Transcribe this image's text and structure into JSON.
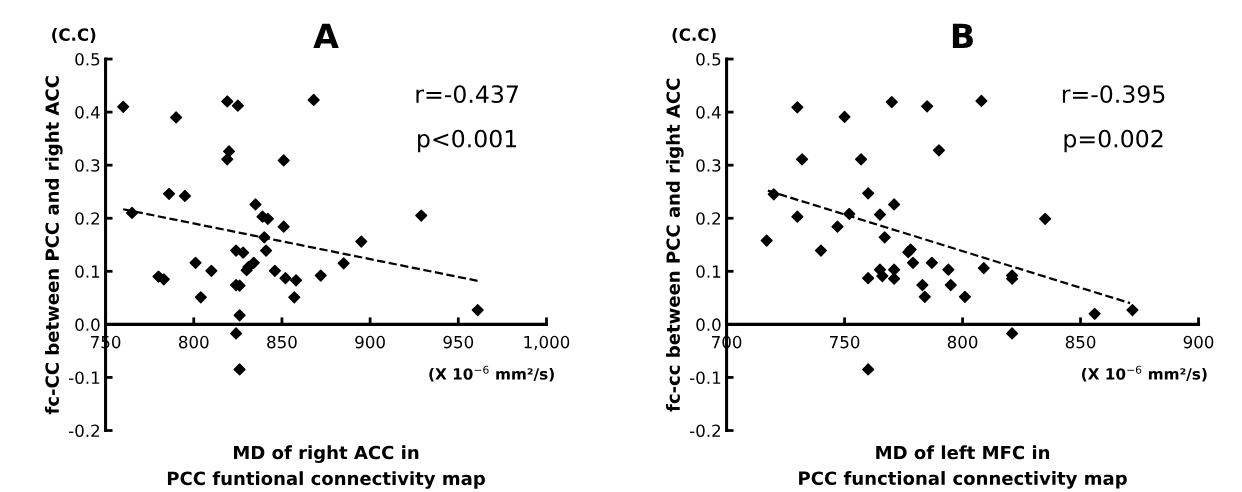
{
  "chart_data": [
    {
      "type": "scatter",
      "title": "A",
      "xlabel": "MD of right ACC in\nPCC funtional connectivity map",
      "ylabel": "fc-CC between PCC and right ACC",
      "annotations": [
        "(C.C)",
        "r=-0.437",
        "p<0.001",
        "(X 10$^{−6}$ mm²/s)"
      ],
      "xlim": [
        750,
        1000
      ],
      "xticks": [
        750,
        800,
        850,
        900,
        950,
        {
          "value": 1000,
          "label": "1,000"
        }
      ],
      "ylim": [
        -0.2,
        0.5
      ],
      "yticks": [
        {
          "value": -0.2,
          "label": "-0.2"
        },
        {
          "value": -0.1,
          "label": "-0.1"
        },
        {
          "value": 0,
          "label": "0.0"
        },
        0.1,
        0.2,
        0.3,
        0.4,
        0.5
      ],
      "grid": false,
      "legend": false,
      "series": [
        {
          "color": "#000000",
          "marker": "diamond",
          "x": [
            760,
            765,
            780,
            783,
            786,
            790,
            795,
            801,
            804,
            810,
            819,
            825,
            820,
            819,
            824,
            828,
            824,
            826,
            826,
            824,
            826,
            830,
            831,
            834,
            835,
            839,
            842,
            840,
            841,
            846,
            851,
            851,
            852,
            858,
            857,
            868,
            872,
            885,
            895,
            929,
            961
          ],
          "values": [
            0.41,
            0.21,
            0.09,
            0.085,
            0.246,
            0.39,
            0.242,
            0.116,
            0.051,
            0.101,
            0.42,
            0.412,
            0.326,
            0.311,
            0.139,
            0.135,
            0.074,
            0.073,
            0.017,
            -0.017,
            -0.085,
            0.102,
            0.108,
            0.116,
            0.226,
            0.203,
            0.199,
            0.164,
            0.139,
            0.101,
            0.184,
            0.309,
            0.087,
            0.083,
            0.051,
            0.423,
            0.092,
            0.115,
            0.156,
            0.205,
            0.027
          ]
        },
        {
          "type": "line",
          "color": "#000000",
          "line_style": "dashed",
          "marker": "none",
          "x": [
            760,
            961
          ],
          "values": [
            0.217,
            0.082
          ]
        }
      ]
    },
    {
      "type": "scatter",
      "title": "B",
      "xlabel": "MD of left MFC in\nPCC functional connectivity map",
      "ylabel": "fc-cc between PCC and right ACC",
      "annotations": [
        "(C.C)",
        "r=-0.395",
        "p=0.002",
        "(X 10$^{−6}$ mm²/s)"
      ],
      "xlim": [
        700,
        900
      ],
      "xticks": [
        700,
        750,
        800,
        850,
        900
      ],
      "ylim": [
        -0.2,
        0.5
      ],
      "yticks": [
        {
          "value": -0.2,
          "label": "-0.2"
        },
        {
          "value": -0.1,
          "label": "-0.1"
        },
        {
          "value": 0,
          "label": "0.0"
        },
        0.1,
        0.2,
        0.3,
        0.4,
        0.5
      ],
      "grid": false,
      "legend": false,
      "series": [
        {
          "color": "#000000",
          "marker": "diamond",
          "x": [
            717,
            720,
            730,
            730,
            732,
            740,
            747,
            750,
            752,
            757,
            760,
            760,
            760,
            765,
            765,
            766,
            767,
            770,
            771,
            771,
            771,
            777,
            778,
            779,
            785,
            783,
            784,
            787,
            790,
            794,
            795,
            801,
            809,
            808,
            821,
            821,
            821,
            835,
            856,
            872
          ],
          "values": [
            0.158,
            0.245,
            0.409,
            0.203,
            0.311,
            0.139,
            0.184,
            0.391,
            0.208,
            0.311,
            0.247,
            0.087,
            -0.085,
            0.207,
            0.103,
            0.091,
            0.164,
            0.419,
            0.226,
            0.103,
            0.086,
            0.136,
            0.141,
            0.116,
            0.411,
            0.074,
            0.052,
            0.116,
            0.328,
            0.103,
            0.074,
            0.052,
            0.106,
            0.421,
            0.092,
            0.086,
            -0.017,
            0.199,
            0.02,
            0.027
          ]
        },
        {
          "type": "line",
          "color": "#000000",
          "line_style": "dashed",
          "marker": "none",
          "x": [
            717.5,
            871
          ],
          "values": [
            0.252,
            0.04
          ]
        }
      ]
    }
  ]
}
